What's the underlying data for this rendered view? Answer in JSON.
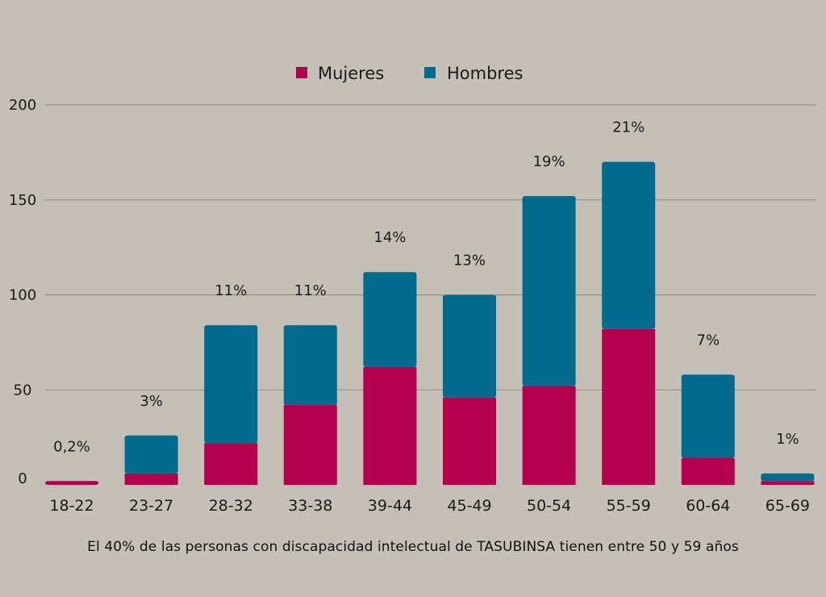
{
  "chart_data": {
    "type": "bar",
    "stacked": true,
    "categories": [
      "18-22",
      "23-27",
      "28-32",
      "33-38",
      "39-44",
      "45-49",
      "50-54",
      "55-59",
      "60-64",
      "65-69"
    ],
    "series": [
      {
        "name": "Mujeres",
        "color": "#b5004d",
        "values": [
          2,
          6,
          22,
          42,
          62,
          46,
          52,
          82,
          14,
          2
        ]
      },
      {
        "name": "Hombres",
        "color": "#006b8c",
        "values": [
          0,
          20,
          62,
          42,
          50,
          54,
          100,
          88,
          44,
          4
        ]
      }
    ],
    "data_labels": [
      "0,2%",
      "3%",
      "11%",
      "11%",
      "14%",
      "13%",
      "19%",
      "21%",
      "7%",
      "1%"
    ],
    "y_ticks": [
      "0",
      "50",
      "100",
      "150",
      "200"
    ],
    "ylim": [
      0,
      200
    ],
    "grid": true,
    "legend_position": "top-center"
  },
  "caption": "El 40% de las personas con discapacidad intelectual de TASUBINSA tienen entre 50 y 59 años"
}
